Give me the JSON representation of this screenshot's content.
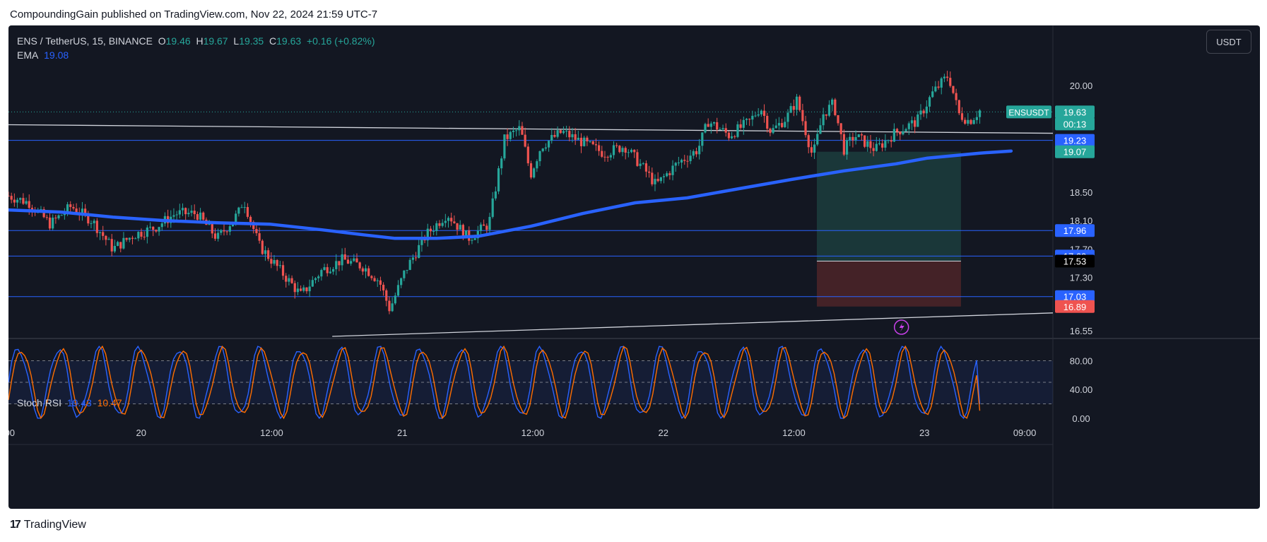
{
  "caption": "CompoundingGain published on TradingView.com, Nov 22, 2024 21:59 UTC-7",
  "footer": {
    "brand": "TradingView"
  },
  "currency_button": "USDT",
  "legend": {
    "symbol": "ENS / TetherUS, 15, BINANCE",
    "o_label": "O",
    "o_value": "19.46",
    "h_label": "H",
    "h_value": "19.67",
    "l_label": "L",
    "l_value": "19.35",
    "c_label": "C",
    "c_value": "19.63",
    "change": "+0.16 (+0.82%)",
    "ema_label": "EMA",
    "ema_value": "19.08"
  },
  "stoch_legend": {
    "label": "Stoch RSI",
    "k": "19.43",
    "d": "10.47"
  },
  "colors": {
    "background": "#131722",
    "up": "#26a69a",
    "down": "#ef5350",
    "ema": "#2962ff",
    "k_line": "#2962ff",
    "d_line": "#ff6d00",
    "profit_zone": "#1c3d3d",
    "loss_zone": "#4a2328"
  },
  "chart_data": {
    "type": "candlestick",
    "x_ticks": [
      ":00",
      "20",
      "12:00",
      "21",
      "12:00",
      "22",
      "12:00",
      "23",
      "09:00"
    ],
    "y_ticks": [
      "20.00",
      "18.50",
      "18.10",
      "17.70",
      "17.30",
      "16.55"
    ],
    "ylim": [
      16.45,
      20.45
    ],
    "price_axis_labels": [
      {
        "text": "ENSUSDT",
        "value": 19.63,
        "kind": "symbol"
      },
      {
        "text": "19.63",
        "value": 19.63,
        "kind": "last"
      },
      {
        "text": "00:13",
        "value": 19.63,
        "kind": "timer"
      },
      {
        "text": "19.23",
        "value": 19.23,
        "kind": "blue"
      },
      {
        "text": "19.07",
        "value": 19.07,
        "kind": "green"
      },
      {
        "text": "17.96",
        "value": 17.96,
        "kind": "blue"
      },
      {
        "text": "17.60",
        "value": 17.6,
        "kind": "blue"
      },
      {
        "text": "17.53",
        "value": 17.53,
        "kind": "black"
      },
      {
        "text": "17.03",
        "value": 17.03,
        "kind": "blue"
      },
      {
        "text": "16.89",
        "value": 16.89,
        "kind": "red"
      }
    ],
    "horizontal_levels": [
      19.23,
      17.96,
      17.6,
      17.03
    ],
    "trendlines": [
      {
        "from": [
          0,
          19.45
        ],
        "to": [
          1,
          19.33
        ]
      },
      {
        "from": [
          0.31,
          16.47
        ],
        "to": [
          1,
          16.8
        ]
      }
    ],
    "position": {
      "entry": 17.53,
      "target": 19.07,
      "stop": 16.89
    },
    "ema_points": [
      [
        0,
        18.25
      ],
      [
        0.05,
        18.22
      ],
      [
        0.1,
        18.15
      ],
      [
        0.15,
        18.1
      ],
      [
        0.2,
        18.07
      ],
      [
        0.25,
        18.05
      ],
      [
        0.3,
        17.97
      ],
      [
        0.34,
        17.9
      ],
      [
        0.37,
        17.85
      ],
      [
        0.41,
        17.85
      ],
      [
        0.45,
        17.88
      ],
      [
        0.5,
        18.02
      ],
      [
        0.55,
        18.2
      ],
      [
        0.6,
        18.35
      ],
      [
        0.65,
        18.42
      ],
      [
        0.7,
        18.55
      ],
      [
        0.75,
        18.68
      ],
      [
        0.8,
        18.8
      ],
      [
        0.85,
        18.9
      ],
      [
        0.88,
        18.98
      ],
      [
        0.93,
        19.05
      ],
      [
        0.96,
        19.08
      ]
    ],
    "price_path": [
      [
        0,
        18.45
      ],
      [
        0.02,
        18.35
      ],
      [
        0.04,
        18.05
      ],
      [
        0.06,
        18.3
      ],
      [
        0.08,
        18.1
      ],
      [
        0.1,
        17.7
      ],
      [
        0.12,
        17.9
      ],
      [
        0.14,
        18.0
      ],
      [
        0.16,
        18.2
      ],
      [
        0.18,
        18.2
      ],
      [
        0.2,
        17.85
      ],
      [
        0.22,
        18.2
      ],
      [
        0.225,
        18.4
      ],
      [
        0.24,
        17.75
      ],
      [
        0.26,
        17.4
      ],
      [
        0.28,
        17.05
      ],
      [
        0.3,
        17.4
      ],
      [
        0.32,
        17.55
      ],
      [
        0.34,
        17.45
      ],
      [
        0.355,
        17.25
      ],
      [
        0.365,
        16.85
      ],
      [
        0.38,
        17.4
      ],
      [
        0.4,
        17.9
      ],
      [
        0.42,
        18.2
      ],
      [
        0.44,
        17.85
      ],
      [
        0.46,
        18.05
      ],
      [
        0.475,
        19.25
      ],
      [
        0.49,
        19.4
      ],
      [
        0.5,
        18.75
      ],
      [
        0.51,
        19.15
      ],
      [
        0.53,
        19.35
      ],
      [
        0.55,
        19.2
      ],
      [
        0.57,
        19.05
      ],
      [
        0.59,
        19.15
      ],
      [
        0.61,
        18.8
      ],
      [
        0.62,
        18.6
      ],
      [
        0.64,
        18.9
      ],
      [
        0.66,
        19.1
      ],
      [
        0.67,
        19.5
      ],
      [
        0.69,
        19.3
      ],
      [
        0.71,
        19.5
      ],
      [
        0.72,
        19.7
      ],
      [
        0.73,
        19.35
      ],
      [
        0.745,
        19.55
      ],
      [
        0.755,
        19.8
      ],
      [
        0.77,
        19.0
      ],
      [
        0.78,
        19.6
      ],
      [
        0.79,
        19.75
      ],
      [
        0.8,
        19.1
      ],
      [
        0.81,
        19.3
      ],
      [
        0.83,
        19.1
      ],
      [
        0.85,
        19.35
      ],
      [
        0.87,
        19.5
      ],
      [
        0.885,
        19.9
      ],
      [
        0.9,
        20.15
      ],
      [
        0.91,
        19.6
      ],
      [
        0.92,
        19.5
      ],
      [
        0.93,
        19.65
      ]
    ],
    "stoch": {
      "ylim": [
        -10,
        110
      ],
      "y_ticks": [
        "80.00",
        "40.00",
        "0.00"
      ],
      "band": [
        20,
        80
      ],
      "k_cycles": 26,
      "last_k": 19.43,
      "last_d": 10.47
    }
  }
}
